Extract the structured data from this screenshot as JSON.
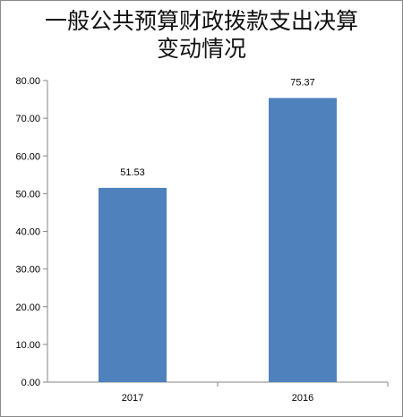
{
  "chart_data": {
    "type": "bar",
    "title": "一般公共预算财政拨款支出决算",
    "subtitle": "变动情况",
    "categories": [
      "2017",
      "2016"
    ],
    "values": [
      51.53,
      75.37
    ],
    "data_labels": [
      "51.53",
      "75.37"
    ],
    "ylim": [
      0,
      80
    ],
    "yticks": [
      "0.00",
      "10.00",
      "20.00",
      "30.00",
      "40.00",
      "50.00",
      "60.00",
      "70.00",
      "80.00"
    ],
    "xlabel": "",
    "ylabel": "",
    "grid": false,
    "legend": "none",
    "colors": {
      "bar": "#4f81bd",
      "axis": "#868686"
    }
  }
}
